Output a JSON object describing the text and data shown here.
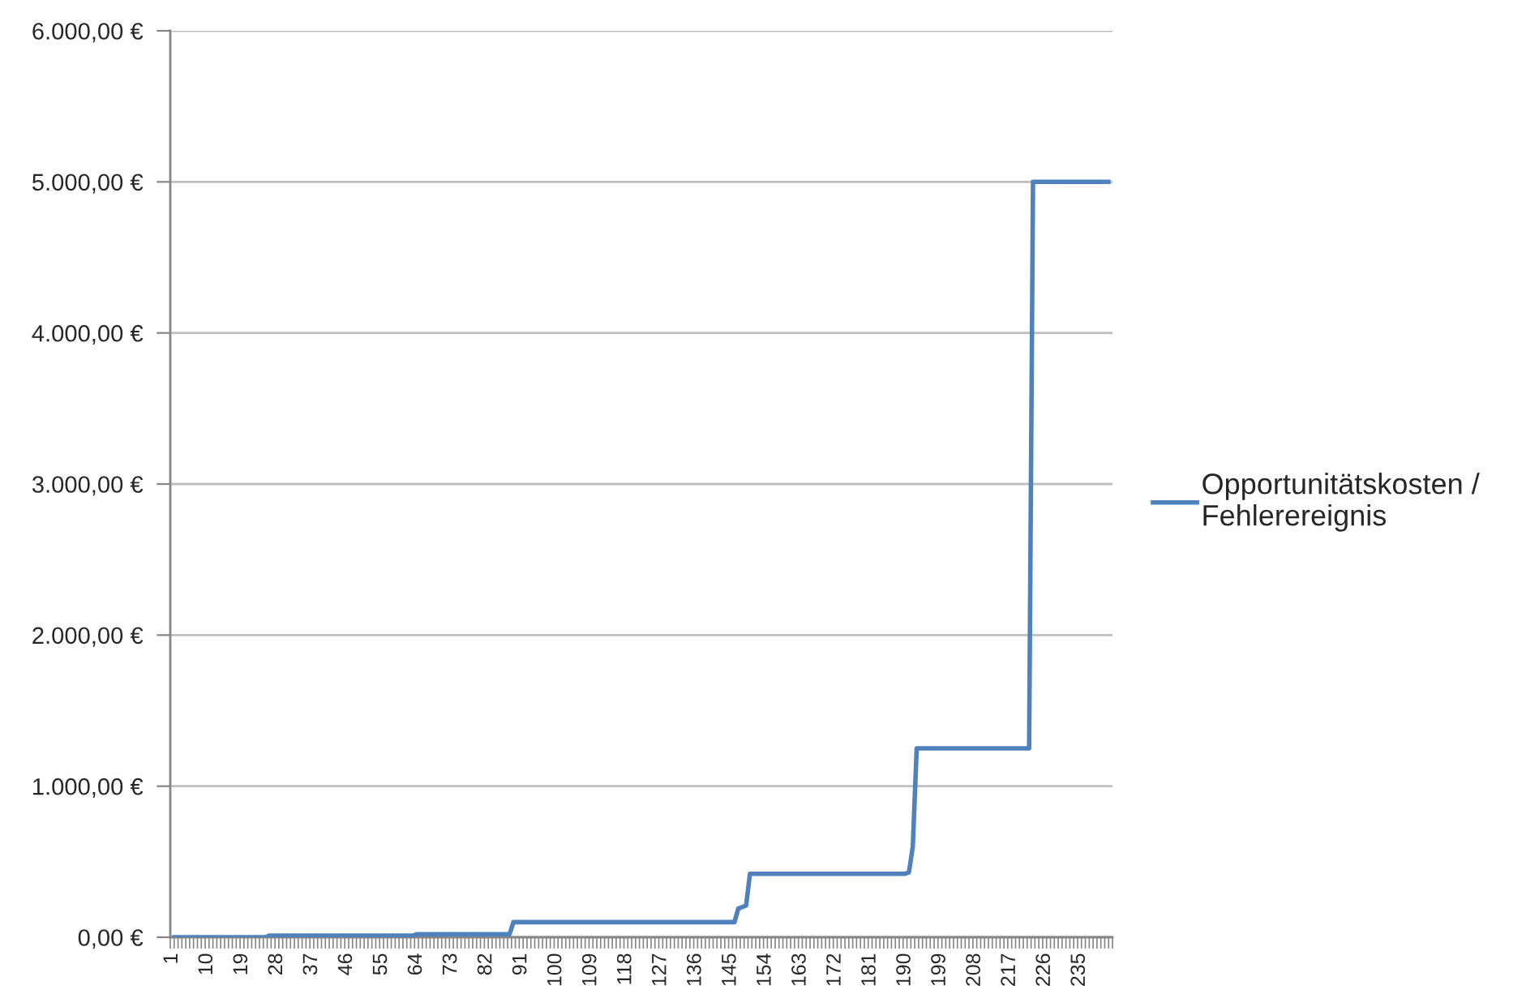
{
  "chart_data": {
    "type": "line",
    "categories": [
      "1",
      null,
      null,
      null,
      null,
      null,
      null,
      null,
      null,
      "10",
      null,
      null,
      null,
      null,
      null,
      null,
      null,
      null,
      "19",
      null,
      null,
      null,
      null,
      null,
      null,
      null,
      null,
      "28",
      null,
      null,
      null,
      null,
      null,
      null,
      null,
      null,
      "37",
      null,
      null,
      null,
      null,
      null,
      null,
      null,
      null,
      "46",
      null,
      null,
      null,
      null,
      null,
      null,
      null,
      null,
      "55",
      null,
      null,
      null,
      null,
      null,
      null,
      null,
      null,
      "64",
      null,
      null,
      null,
      null,
      null,
      null,
      null,
      null,
      "73",
      null,
      null,
      null,
      null,
      null,
      null,
      null,
      null,
      "82",
      null,
      null,
      null,
      null,
      null,
      null,
      null,
      null,
      "91",
      null,
      null,
      null,
      null,
      null,
      null,
      null,
      null,
      "100",
      null,
      null,
      null,
      null,
      null,
      null,
      null,
      null,
      "109",
      null,
      null,
      null,
      null,
      null,
      null,
      null,
      null,
      "118",
      null,
      null,
      null,
      null,
      null,
      null,
      null,
      null,
      "127",
      null,
      null,
      null,
      null,
      null,
      null,
      null,
      null,
      "136",
      null,
      null,
      null,
      null,
      null,
      null,
      null,
      null,
      "145",
      null,
      null,
      null,
      null,
      null,
      null,
      null,
      null,
      "154",
      null,
      null,
      null,
      null,
      null,
      null,
      null,
      null,
      "163",
      null,
      null,
      null,
      null,
      null,
      null,
      null,
      null,
      "172",
      null,
      null,
      null,
      null,
      null,
      null,
      null,
      null,
      "181",
      null,
      null,
      null,
      null,
      null,
      null,
      null,
      null,
      "190",
      null,
      null,
      null,
      null,
      null,
      null,
      null,
      null,
      "199",
      null,
      null,
      null,
      null,
      null,
      null,
      null,
      null,
      "208",
      null,
      null,
      null,
      null,
      null,
      null,
      null,
      null,
      "217",
      null,
      null,
      null,
      null,
      null,
      null,
      null,
      null,
      "226",
      null,
      null,
      null,
      null,
      null,
      null,
      null,
      null,
      "235",
      null,
      null,
      null,
      null,
      null,
      null,
      null,
      null
    ],
    "series": [
      {
        "name": "Opportunitätskosten / Fehlerereignis",
        "color": "#4f81bd",
        "values": [
          0,
          0,
          0,
          0,
          0,
          0,
          0,
          0,
          0,
          0,
          0,
          0,
          0,
          0,
          0,
          0,
          0,
          0,
          0,
          0,
          0,
          0,
          0,
          0,
          0,
          10,
          10,
          10,
          10,
          10,
          10,
          10,
          10,
          10,
          10,
          10,
          10,
          10,
          10,
          10,
          10,
          10,
          10,
          10,
          10,
          10,
          10,
          10,
          10,
          10,
          10,
          10,
          10,
          10,
          10,
          10,
          10,
          10,
          10,
          10,
          10,
          10,
          10,
          20,
          20,
          20,
          20,
          20,
          20,
          20,
          20,
          20,
          20,
          20,
          20,
          20,
          20,
          20,
          20,
          20,
          20,
          20,
          20,
          20,
          20,
          20,
          20,
          20,
          100,
          100,
          100,
          100,
          100,
          100,
          100,
          100,
          100,
          100,
          100,
          100,
          100,
          100,
          100,
          100,
          100,
          100,
          100,
          100,
          100,
          100,
          100,
          100,
          100,
          100,
          100,
          100,
          100,
          100,
          100,
          100,
          100,
          100,
          100,
          100,
          100,
          100,
          100,
          100,
          100,
          100,
          100,
          100,
          100,
          100,
          100,
          100,
          100,
          100,
          100,
          100,
          100,
          100,
          100,
          100,
          100,
          100,
          190,
          200,
          210,
          420,
          420,
          420,
          420,
          420,
          420,
          420,
          420,
          420,
          420,
          420,
          420,
          420,
          420,
          420,
          420,
          420,
          420,
          420,
          420,
          420,
          420,
          420,
          420,
          420,
          420,
          420,
          420,
          420,
          420,
          420,
          420,
          420,
          420,
          420,
          420,
          420,
          420,
          420,
          420,
          420,
          430,
          600,
          1250,
          1250,
          1250,
          1250,
          1250,
          1250,
          1250,
          1250,
          1250,
          1250,
          1250,
          1250,
          1250,
          1250,
          1250,
          1250,
          1250,
          1250,
          1250,
          1250,
          1250,
          1250,
          1250,
          1250,
          1250,
          1250,
          1250,
          1250,
          1250,
          1250,
          5000,
          5000,
          5000,
          5000,
          5000,
          5000,
          5000,
          5000,
          5000,
          5000,
          5000,
          5000,
          5000,
          5000,
          5000,
          5000,
          5000,
          5000,
          5000,
          5000,
          5000
        ]
      }
    ],
    "ylim": [
      0,
      6000
    ],
    "yticks": [
      {
        "value": 0,
        "label": "0,00 €"
      },
      {
        "value": 1000,
        "label": "1.000,00 €"
      },
      {
        "value": 2000,
        "label": "2.000,00 €"
      },
      {
        "value": 3000,
        "label": "3.000,00 €"
      },
      {
        "value": 4000,
        "label": "4.000,00 €"
      },
      {
        "value": 5000,
        "label": "5.000,00 €"
      },
      {
        "value": 6000,
        "label": "6.000,00 €"
      }
    ],
    "grid": "y",
    "legend": "right"
  }
}
